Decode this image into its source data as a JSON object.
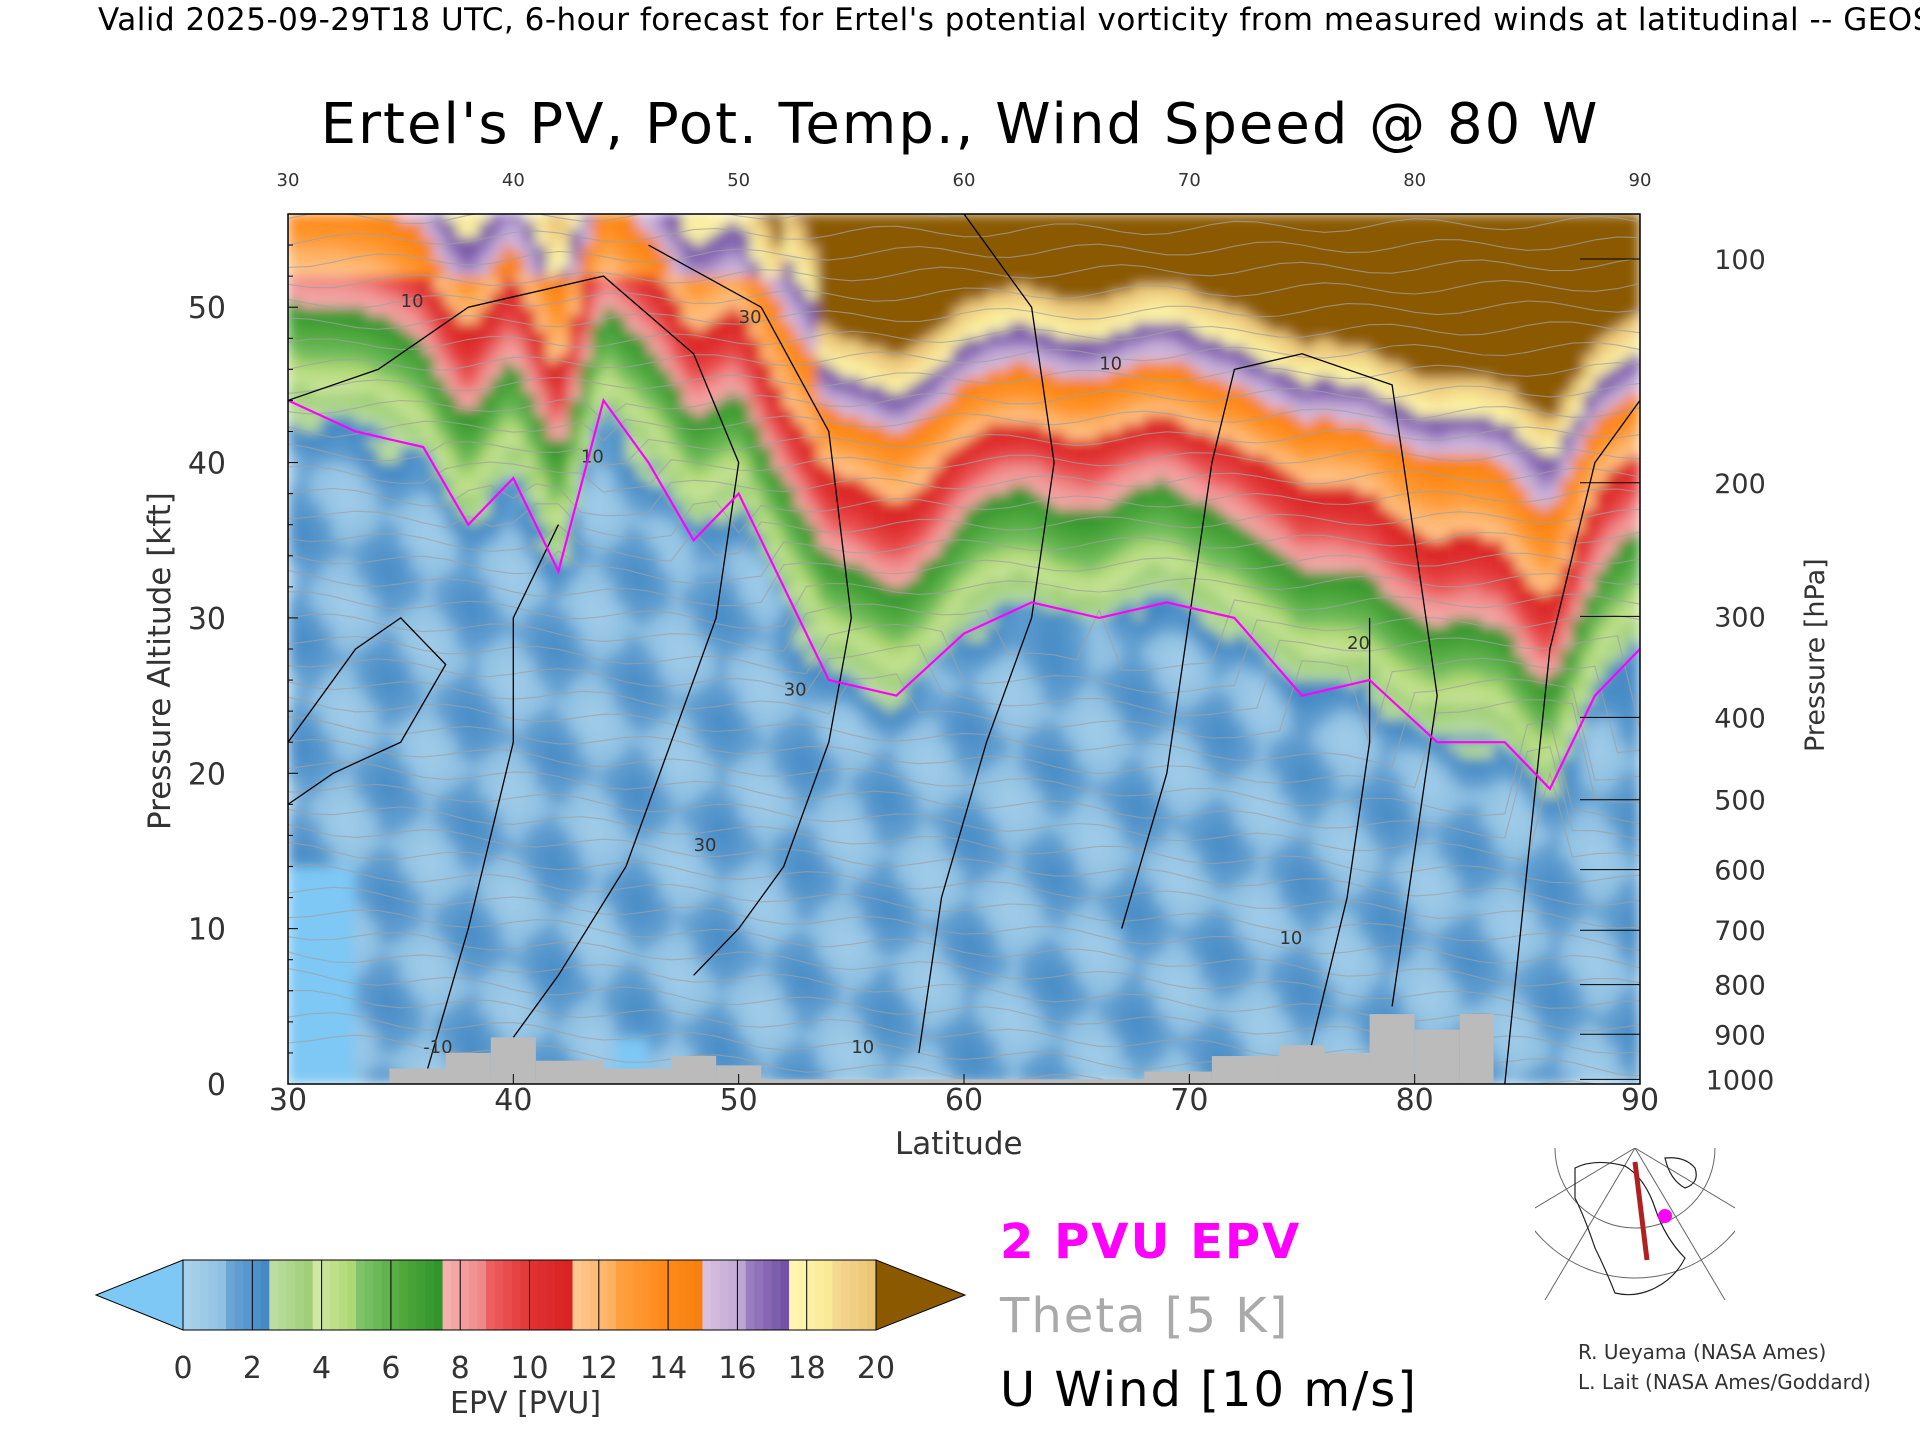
{
  "header": {
    "valid_text": "Valid 2025-09-29T18 UTC, 6-hour forecast for Ertel's potential vorticity from measured winds at latitudinal -- GEOS",
    "title": "Ertel's PV, Pot. Temp., Wind Speed @ 80 W"
  },
  "legend": {
    "pvu": "2 PVU EPV",
    "theta": "Theta [5 K]",
    "wind": "U Wind [10 m/s]"
  },
  "credits": {
    "line1": "R. Ueyama (NASA Ames)",
    "line2": "L. Lait (NASA Ames/Goddard)"
  },
  "colors": {
    "pvu_contour": "#ff00ff",
    "theta_contour": "#a0a0a0",
    "wind_contour": "#000000",
    "terrain": "#bbbbbb"
  },
  "chart_data": {
    "type": "heatmap",
    "title": "Ertel's PV, Pot. Temp., Wind Speed @ 80 W",
    "xlabel": "Latitude",
    "ylabel": "Pressure Altitude [kft]",
    "y2label": "Pressure [hPa]",
    "xlim": [
      30,
      90
    ],
    "ylim": [
      0,
      56
    ],
    "x_ticks": [
      30,
      40,
      50,
      60,
      70,
      80,
      90
    ],
    "y_ticks": [
      0,
      10,
      20,
      30,
      40,
      50
    ],
    "pressure_ticks": [
      {
        "hPa": 100,
        "kft": 53.1
      },
      {
        "hPa": 200,
        "kft": 38.7
      },
      {
        "hPa": 300,
        "kft": 30.1
      },
      {
        "hPa": 400,
        "kft": 23.6
      },
      {
        "hPa": 500,
        "kft": 18.3
      },
      {
        "hPa": 600,
        "kft": 13.8
      },
      {
        "hPa": 700,
        "kft": 9.9
      },
      {
        "hPa": 800,
        "kft": 6.4
      },
      {
        "hPa": 900,
        "kft": 3.2
      },
      {
        "hPa": 1000,
        "kft": 0.3
      }
    ],
    "colorbar": {
      "label": "EPV [PVU]",
      "ticks": [
        0,
        2,
        4,
        6,
        8,
        10,
        12,
        14,
        16,
        18,
        20
      ],
      "under_color": "#7ec8f5",
      "over_color": "#8b5a00",
      "bins": [
        {
          "from": 0,
          "to": 1,
          "colors": [
            "#a8d2ec",
            "#8bbde0"
          ]
        },
        {
          "from": 1,
          "to": 2,
          "colors": [
            "#6aa5d4",
            "#3c83c2"
          ]
        },
        {
          "from": 2,
          "to": 3,
          "colors": [
            "#bcdda2",
            "#98cc6e"
          ]
        },
        {
          "from": 3,
          "to": 4,
          "colors": [
            "#cfe7a0",
            "#a6d46a"
          ]
        },
        {
          "from": 4,
          "to": 5,
          "colors": [
            "#7fc46a",
            "#4ea83c"
          ]
        },
        {
          "from": 5,
          "to": 6,
          "colors": [
            "#4ea83c",
            "#2a9028"
          ]
        },
        {
          "from": 6,
          "to": 7,
          "colors": [
            "#f6b0b0",
            "#ee8080"
          ]
        },
        {
          "from": 7,
          "to": 8,
          "colors": [
            "#ee6060",
            "#e03030"
          ]
        },
        {
          "from": 8,
          "to": 9,
          "colors": [
            "#e03030",
            "#d82020"
          ]
        },
        {
          "from": 9,
          "to": 10,
          "colors": [
            "#ffc890",
            "#ffaa55"
          ]
        },
        {
          "from": 10,
          "to": 11,
          "colors": [
            "#ffa040",
            "#ff8a1a"
          ]
        },
        {
          "from": 11,
          "to": 12,
          "colors": [
            "#ff8a1a",
            "#f57f0e"
          ]
        },
        {
          "from": 12,
          "to": 13,
          "colors": [
            "#d8c0e0",
            "#b8a0d0"
          ]
        },
        {
          "from": 13,
          "to": 14,
          "colors": [
            "#9a7cc0",
            "#6a48a0"
          ]
        },
        {
          "from": 14,
          "to": 15,
          "colors": [
            "#fff6b0",
            "#f6e890"
          ]
        },
        {
          "from": 15,
          "to": 16,
          "colors": [
            "#f6d890",
            "#e8c070"
          ]
        }
      ]
    },
    "epv_2pvu_height_kft": [
      {
        "lat": 30,
        "kft": 44
      },
      {
        "lat": 33,
        "kft": 42
      },
      {
        "lat": 36,
        "kft": 41
      },
      {
        "lat": 38,
        "kft": 36
      },
      {
        "lat": 40,
        "kft": 39
      },
      {
        "lat": 42,
        "kft": 33
      },
      {
        "lat": 44,
        "kft": 44
      },
      {
        "lat": 46,
        "kft": 40
      },
      {
        "lat": 48,
        "kft": 35
      },
      {
        "lat": 50,
        "kft": 38
      },
      {
        "lat": 52,
        "kft": 32
      },
      {
        "lat": 54,
        "kft": 26
      },
      {
        "lat": 57,
        "kft": 25
      },
      {
        "lat": 60,
        "kft": 29
      },
      {
        "lat": 63,
        "kft": 31
      },
      {
        "lat": 66,
        "kft": 30
      },
      {
        "lat": 69,
        "kft": 31
      },
      {
        "lat": 72,
        "kft": 30
      },
      {
        "lat": 75,
        "kft": 25
      },
      {
        "lat": 78,
        "kft": 26
      },
      {
        "lat": 81,
        "kft": 22
      },
      {
        "lat": 84,
        "kft": 22
      },
      {
        "lat": 86,
        "kft": 19
      },
      {
        "lat": 88,
        "kft": 25
      },
      {
        "lat": 90,
        "kft": 28
      }
    ],
    "wind_contour_labels": [
      {
        "lat": 35,
        "kft": 50,
        "text": "10"
      },
      {
        "lat": 43,
        "kft": 40,
        "text": "10"
      },
      {
        "lat": 50,
        "kft": 49,
        "text": "30"
      },
      {
        "lat": 52,
        "kft": 25,
        "text": "30"
      },
      {
        "lat": 48,
        "kft": 15,
        "text": "30"
      },
      {
        "lat": 66,
        "kft": 46,
        "text": "10"
      },
      {
        "lat": 74,
        "kft": 9,
        "text": "10"
      },
      {
        "lat": 77,
        "kft": 28,
        "text": "20"
      },
      {
        "lat": 55,
        "kft": 2,
        "text": "10"
      },
      {
        "lat": 36,
        "kft": 2,
        "text": "-10"
      }
    ],
    "terrain_kft": [
      {
        "lat": 34.5,
        "kft": 1
      },
      {
        "lat": 37,
        "kft": 2
      },
      {
        "lat": 39,
        "kft": 3
      },
      {
        "lat": 41,
        "kft": 1.5
      },
      {
        "lat": 44,
        "kft": 1
      },
      {
        "lat": 47,
        "kft": 1.8
      },
      {
        "lat": 49,
        "kft": 1.2
      },
      {
        "lat": 51,
        "kft": 0.3
      },
      {
        "lat": 68,
        "kft": 0.8
      },
      {
        "lat": 71,
        "kft": 1.8
      },
      {
        "lat": 74,
        "kft": 2.5
      },
      {
        "lat": 76,
        "kft": 2
      },
      {
        "lat": 78,
        "kft": 4.5
      },
      {
        "lat": 80,
        "kft": 3.5
      },
      {
        "lat": 82,
        "kft": 4.5
      },
      {
        "lat": 83.5,
        "kft": 0
      }
    ],
    "grid": false
  }
}
